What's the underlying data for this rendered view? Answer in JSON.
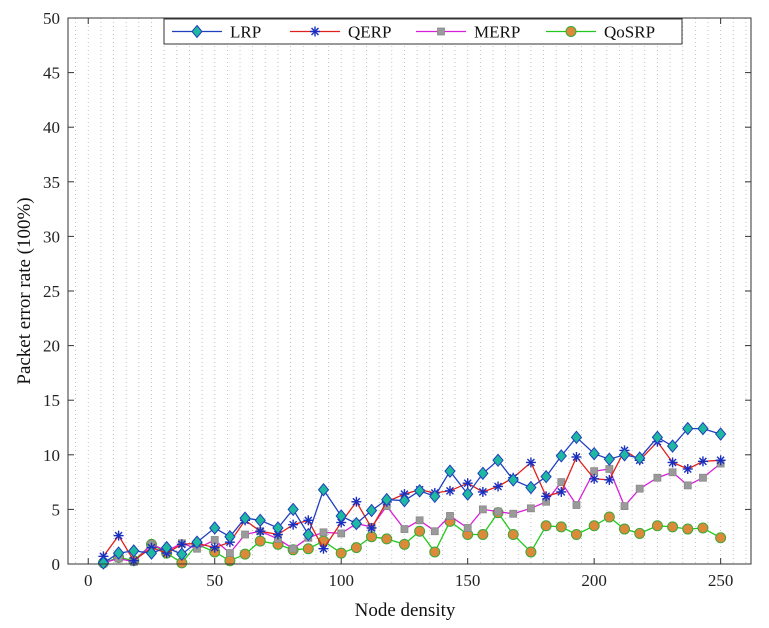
{
  "chart_data": {
    "type": "line",
    "title": "",
    "xlabel": "Node density",
    "ylabel": "Packet error rate (100%)",
    "xlim": [
      -8,
      262
    ],
    "ylim": [
      0,
      50
    ],
    "xticks": [
      0,
      50,
      100,
      150,
      200,
      250
    ],
    "yticks": [
      0,
      5,
      10,
      15,
      20,
      25,
      30,
      35,
      40,
      45,
      50
    ],
    "grid": "vertical dotted",
    "legend_position": "top-center",
    "x": [
      6,
      12,
      18,
      25,
      31,
      37,
      43,
      50,
      56,
      62,
      68,
      75,
      81,
      87,
      93,
      100,
      106,
      112,
      118,
      125,
      131,
      137,
      143,
      150,
      156,
      162,
      168,
      175,
      181,
      187,
      193,
      200,
      206,
      212,
      218,
      225,
      231,
      237,
      243,
      250
    ],
    "series": [
      {
        "name": "LRP",
        "color": "#1f3fbf",
        "marker": "diamond",
        "marker_fill": "#1fb8a0",
        "values": [
          0.1,
          1.0,
          1.2,
          1.0,
          1.5,
          0.9,
          2.0,
          3.3,
          2.5,
          4.2,
          4.0,
          3.3,
          5.0,
          2.7,
          6.8,
          4.4,
          3.7,
          4.9,
          5.9,
          5.8,
          6.7,
          6.2,
          8.5,
          6.4,
          8.3,
          9.5,
          7.7,
          7.0,
          8.0,
          9.9,
          11.6,
          10.1,
          9.6,
          10.0,
          9.7,
          11.6,
          10.8,
          12.4,
          12.4,
          11.9
        ]
      },
      {
        "name": "QERP",
        "color": "#e0201a",
        "marker": "asterisk",
        "marker_fill": "#1a2fbf",
        "values": [
          0.7,
          2.6,
          0.3,
          1.5,
          1.0,
          1.8,
          1.9,
          1.5,
          2.0,
          4.0,
          3.0,
          2.7,
          3.6,
          4.0,
          1.4,
          3.8,
          5.7,
          3.3,
          5.7,
          6.4,
          6.8,
          6.5,
          6.7,
          7.4,
          6.6,
          7.1,
          7.9,
          9.3,
          6.2,
          6.6,
          9.8,
          7.8,
          7.7,
          10.4,
          9.5,
          11.2,
          9.3,
          8.7,
          9.4,
          9.5
        ]
      },
      {
        "name": "MERP",
        "color": "#d81fd8",
        "marker": "square",
        "marker_fill": "#9a9a9a",
        "values": [
          0.1,
          0.5,
          0.2,
          1.8,
          1.2,
          1.9,
          1.4,
          2.2,
          1.0,
          2.7,
          3.0,
          2.3,
          1.4,
          2.4,
          2.9,
          2.8,
          3.7,
          3.4,
          5.3,
          3.2,
          4.0,
          3.0,
          4.4,
          3.3,
          5.0,
          4.8,
          4.6,
          5.1,
          5.7,
          7.5,
          5.4,
          8.5,
          8.7,
          5.3,
          6.9,
          7.9,
          8.4,
          7.2,
          7.9,
          9.2
        ]
      },
      {
        "name": "QoSRP",
        "color": "#22c81e",
        "marker": "circle",
        "marker_fill": "#dc8a3a",
        "values": [
          0.1,
          0.6,
          0.3,
          1.8,
          1.0,
          0.1,
          1.8,
          1.1,
          0.3,
          0.9,
          2.1,
          1.8,
          1.3,
          1.4,
          2.1,
          1.0,
          1.5,
          2.5,
          2.3,
          1.8,
          3.0,
          1.1,
          3.9,
          2.7,
          2.7,
          4.7,
          2.7,
          1.1,
          3.5,
          3.4,
          2.7,
          3.5,
          4.3,
          3.2,
          2.8,
          3.5,
          3.4,
          3.2,
          3.3,
          2.4
        ]
      }
    ]
  }
}
